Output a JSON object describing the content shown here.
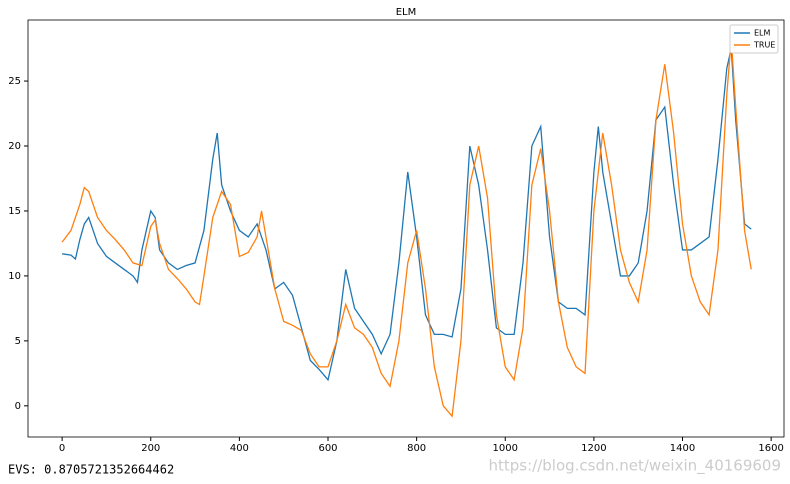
{
  "chart_data": {
    "type": "line",
    "title": "ELM",
    "xlim": [
      -77,
      1629
    ],
    "ylim": [
      -2.4,
      29.7
    ],
    "xticks": [
      0,
      200,
      400,
      600,
      800,
      1000,
      1200,
      1400,
      1600
    ],
    "yticks": [
      0,
      5,
      10,
      15,
      20,
      25
    ],
    "legend": "upper right",
    "series": [
      {
        "name": "ELM",
        "color": "#1f77b4",
        "x": [
          0,
          20,
          30,
          40,
          50,
          60,
          80,
          100,
          120,
          140,
          160,
          170,
          180,
          200,
          210,
          220,
          240,
          260,
          280,
          300,
          320,
          340,
          350,
          360,
          380,
          400,
          420,
          440,
          460,
          470,
          480,
          500,
          520,
          540,
          560,
          580,
          600,
          620,
          640,
          660,
          680,
          700,
          720,
          740,
          760,
          780,
          800,
          820,
          840,
          860,
          880,
          900,
          920,
          940,
          960,
          980,
          1000,
          1020,
          1040,
          1060,
          1080,
          1100,
          1120,
          1140,
          1160,
          1180,
          1200,
          1210,
          1220,
          1240,
          1260,
          1280,
          1300,
          1320,
          1340,
          1360,
          1380,
          1400,
          1420,
          1440,
          1460,
          1480,
          1500,
          1510,
          1520,
          1540,
          1555
        ],
        "values": [
          11.7,
          11.6,
          11.3,
          12.8,
          14,
          14.5,
          12.5,
          11.5,
          11,
          10.5,
          10,
          9.5,
          12,
          15,
          14.5,
          12,
          11,
          10.5,
          10.8,
          11,
          13.5,
          19,
          21,
          17,
          15,
          13.5,
          13,
          14,
          12,
          10.5,
          9,
          9.5,
          8.5,
          6,
          3.5,
          2.8,
          2,
          5,
          10.5,
          7.5,
          6.5,
          5.5,
          4,
          5.5,
          11,
          18,
          13,
          7,
          5.5,
          5.5,
          5.3,
          9,
          20,
          17,
          12,
          6,
          5.5,
          5.5,
          11,
          20,
          21.5,
          13,
          8,
          7.5,
          7.5,
          7,
          18,
          21.5,
          18,
          14,
          10,
          10,
          11,
          15,
          22,
          23,
          17,
          12,
          12,
          12.5,
          13,
          19,
          26,
          27.5,
          22,
          14,
          13.6
        ]
      },
      {
        "name": "TRUE",
        "color": "#ff7f0e",
        "x": [
          0,
          20,
          40,
          50,
          60,
          80,
          100,
          120,
          140,
          160,
          180,
          200,
          210,
          220,
          240,
          260,
          280,
          300,
          310,
          320,
          340,
          360,
          380,
          400,
          420,
          440,
          450,
          460,
          480,
          500,
          520,
          540,
          560,
          580,
          600,
          620,
          640,
          660,
          680,
          700,
          720,
          740,
          760,
          780,
          800,
          820,
          840,
          860,
          880,
          900,
          920,
          940,
          960,
          980,
          1000,
          1020,
          1040,
          1060,
          1080,
          1100,
          1120,
          1140,
          1160,
          1180,
          1200,
          1220,
          1240,
          1260,
          1280,
          1300,
          1320,
          1340,
          1360,
          1380,
          1400,
          1420,
          1440,
          1460,
          1480,
          1500,
          1510,
          1520,
          1540,
          1555
        ],
        "values": [
          12.6,
          13.5,
          15.5,
          16.8,
          16.5,
          14.5,
          13.5,
          12.8,
          12,
          11,
          10.8,
          13.8,
          14.3,
          12.5,
          10.5,
          9.8,
          9,
          8,
          7.8,
          10,
          14.5,
          16.5,
          15.5,
          11.5,
          11.8,
          13,
          15,
          13,
          9,
          6.5,
          6.2,
          5.8,
          4,
          3,
          3,
          5,
          7.8,
          6,
          5.5,
          4.5,
          2.5,
          1.5,
          5,
          11,
          13.5,
          9,
          3,
          0,
          -0.8,
          5,
          17,
          20,
          16,
          7,
          3,
          2,
          6,
          17,
          19.8,
          15,
          8,
          4.5,
          3,
          2.5,
          15,
          21,
          17,
          12,
          9.5,
          8,
          12,
          22,
          26.3,
          21,
          14,
          10,
          8,
          7,
          12,
          24,
          28.2,
          23,
          13.5,
          10.5
        ]
      }
    ]
  },
  "caption": "EVS: 0.8705721352664462",
  "watermark": "https://blog.csdn.net/weixin_40169609"
}
